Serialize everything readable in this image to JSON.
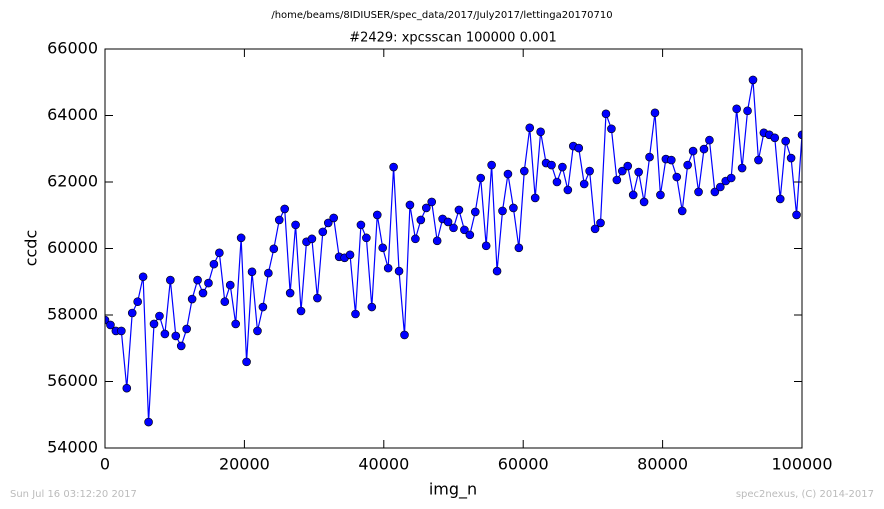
{
  "chart_data": {
    "type": "line",
    "suptitle": "/home/beams/8IDIUSER/spec_data/2017/July2017/lettinga20170710",
    "title": "#2429: xpcsscan 100000 0.001",
    "xlabel": "img_n",
    "ylabel": "ccdc",
    "timestamp": "Sun Jul 16 03:12:20 2017",
    "credit": "spec2nexus, (C) 2014-2017",
    "color": "#0000ff",
    "marker": "o",
    "xlim": [
      0,
      100000
    ],
    "ylim": [
      54000,
      66000
    ],
    "xticks": [
      0,
      20000,
      40000,
      60000,
      80000,
      100000
    ],
    "yticks": [
      54000,
      56000,
      58000,
      60000,
      62000,
      64000,
      66000
    ],
    "x": [
      0,
      781.25,
      1562.5,
      2343.75,
      3125,
      3906.25,
      4687.5,
      5468.75,
      6250,
      7031.25,
      7812.5,
      8593.75,
      9375,
      10156.25,
      10937.5,
      11718.75,
      12500,
      13281.25,
      14062.5,
      14843.75,
      15625,
      16406.25,
      17187.5,
      17968.75,
      18750,
      19531.25,
      20312.5,
      21093.75,
      21875,
      22656.25,
      23437.5,
      24218.75,
      25000,
      25781.25,
      26562.5,
      27343.75,
      28125,
      28906.25,
      29687.5,
      30468.75,
      31250,
      32031.25,
      32812.5,
      33593.75,
      34375,
      35156.25,
      35937.5,
      36718.75,
      37500,
      38281.25,
      39062.5,
      39843.75,
      40625,
      41406.25,
      42187.5,
      42968.75,
      43750,
      44531.25,
      45312.5,
      46093.75,
      46875,
      47656.25,
      48437.5,
      49218.75,
      50000,
      50781.25,
      51562.5,
      52343.75,
      53125,
      53906.25,
      54687.5,
      55468.75,
      56250,
      57031.25,
      57812.5,
      58593.75,
      59375,
      60156.25,
      60937.5,
      61718.75,
      62500,
      63281.25,
      64062.5,
      64843.75,
      65625,
      66406.25,
      67187.5,
      67968.75,
      68750,
      69531.25,
      70312.5,
      71093.75,
      71875,
      72656.25,
      73437.5,
      74218.75,
      75000,
      75781.25,
      76562.5,
      77343.75,
      78125,
      78906.25,
      79687.5,
      80468.75,
      81250,
      82031.25,
      82812.5,
      83593.75,
      84375,
      85156.25,
      85937.5,
      86718.75,
      87500,
      88281.25,
      89062.5,
      89843.75,
      90625,
      91406.25,
      92187.5,
      92968.75,
      93750,
      94531.25,
      95312.5,
      96093.75,
      96875,
      97656.25,
      98437.5,
      99218.75,
      100000
    ],
    "values": [
      57850,
      57700,
      57520,
      57520,
      55800,
      58060,
      58400,
      59150,
      54780,
      57730,
      57970,
      57430,
      59050,
      57370,
      57070,
      57580,
      58480,
      59050,
      58660,
      58960,
      59530,
      59870,
      58400,
      58900,
      57730,
      60320,
      56590,
      59300,
      57520,
      58240,
      59260,
      59990,
      60860,
      61190,
      58660,
      60710,
      58120,
      60200,
      60290,
      58510,
      60500,
      60770,
      60920,
      59750,
      59720,
      59810,
      58030,
      60710,
      60320,
      58240,
      61010,
      60020,
      59410,
      62450,
      59320,
      57400,
      61310,
      60290,
      60860,
      61220,
      61400,
      60230,
      60890,
      60800,
      60620,
      61160,
      60560,
      60410,
      61100,
      62120,
      60080,
      62510,
      59320,
      61130,
      62240,
      61220,
      60020,
      62330,
      63630,
      61520,
      63510,
      62570,
      62510,
      62000,
      62450,
      61760,
      63080,
      63020,
      61940,
      62330,
      60590,
      60770,
      64050,
      63600,
      62060,
      62330,
      62480,
      61610,
      62300,
      61400,
      62750,
      64080,
      61610,
      62690,
      62660,
      62150,
      61130,
      62510,
      62930,
      61700,
      62990,
      63260,
      61700,
      61850,
      62030,
      62120,
      64200,
      62420,
      64140,
      65070,
      62660,
      63480,
      63420,
      63330,
      61490,
      63230,
      62720,
      61010,
      63420
    ]
  }
}
